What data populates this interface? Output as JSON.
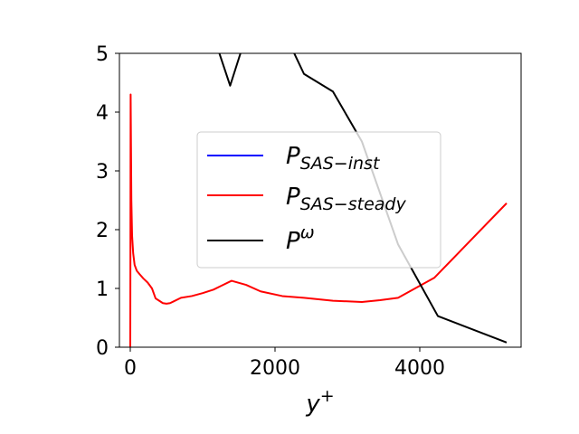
{
  "chart_data": {
    "type": "line",
    "title": "",
    "xlabel_main": "y",
    "xlabel_sup": "+",
    "ylabel": "",
    "xlim": [
      -150,
      5400
    ],
    "ylim": [
      0,
      5
    ],
    "x_ticks": [
      0,
      2000,
      4000
    ],
    "x_tick_labels": [
      "0",
      "2000",
      "4000"
    ],
    "y_ticks": [
      0,
      1,
      2,
      3,
      4,
      5
    ],
    "y_tick_labels": [
      "0",
      "1",
      "2",
      "3",
      "4",
      "5"
    ],
    "grid": false,
    "legend_placement": "center-right",
    "series": [
      {
        "name_main": "P",
        "name_sub": "SAS−inst",
        "color": "#0000ff",
        "x": [],
        "y": []
      },
      {
        "name_main": "P",
        "name_sub": "SAS−steady",
        "color": "#ff0000",
        "x": [
          0,
          2,
          5,
          10,
          15,
          25,
          40,
          60,
          90,
          130,
          180,
          240,
          300,
          350,
          400,
          450,
          500,
          550,
          600,
          700,
          850,
          1000,
          1150,
          1250,
          1400,
          1600,
          1800,
          2100,
          2400,
          2800,
          3200,
          3450,
          3700,
          4200,
          5200
        ],
        "y": [
          0,
          1.5,
          4.3,
          3.4,
          2.5,
          1.9,
          1.6,
          1.4,
          1.3,
          1.24,
          1.17,
          1.1,
          1.0,
          0.83,
          0.79,
          0.75,
          0.74,
          0.75,
          0.78,
          0.84,
          0.87,
          0.92,
          0.98,
          1.04,
          1.13,
          1.06,
          0.95,
          0.87,
          0.84,
          0.79,
          0.77,
          0.8,
          0.84,
          1.18,
          2.45
        ]
      },
      {
        "name_main": "P",
        "name_sup": "ω",
        "color": "#000000",
        "x": [
          1150,
          1380,
          1600,
          2150,
          2400,
          2800,
          3200,
          3700,
          4250,
          5200
        ],
        "y": [
          5.3,
          4.45,
          5.3,
          5.3,
          4.65,
          4.35,
          3.5,
          1.75,
          0.53,
          0.08
        ]
      }
    ]
  }
}
